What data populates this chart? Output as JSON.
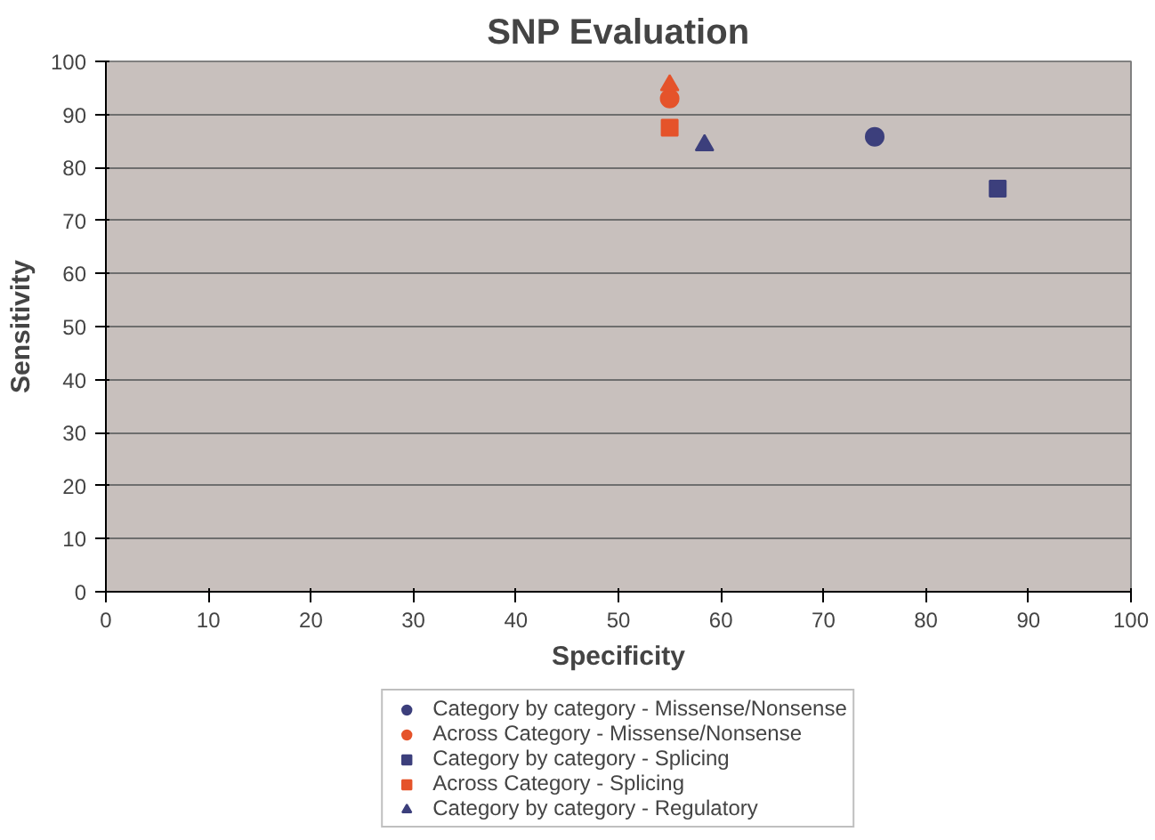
{
  "chart_data": {
    "type": "scatter",
    "title": "SNP Evaluation",
    "xlabel": "Specificity",
    "ylabel": "Sensitivity",
    "xlim": [
      0,
      100
    ],
    "ylim": [
      0,
      100
    ],
    "xticks": [
      0,
      10,
      20,
      30,
      40,
      50,
      60,
      70,
      80,
      90,
      100
    ],
    "yticks": [
      0,
      10,
      20,
      30,
      40,
      50,
      60,
      70,
      80,
      90,
      100
    ],
    "grid": "y",
    "legend": "bottom",
    "series": [
      {
        "name": "Category by category - Missense/Nonsense",
        "color": "#3c3f7c",
        "marker": "circle",
        "x": [
          75
        ],
        "values": [
          85.8
        ]
      },
      {
        "name": "Across Category - Missense/Nonsense",
        "color": "#e5532a",
        "marker": "circle",
        "x": [
          55
        ],
        "values": [
          93
        ]
      },
      {
        "name": "Category by category - Splicing",
        "color": "#3c3f7c",
        "marker": "square",
        "x": [
          87
        ],
        "values": [
          76
        ]
      },
      {
        "name": "Across Category - Splicing",
        "color": "#e5532a",
        "marker": "square",
        "x": [
          55
        ],
        "values": [
          87.5
        ]
      },
      {
        "name": "Category by category - Regulatory",
        "color": "#3c3f7c",
        "marker": "triangle",
        "x": [
          58.4
        ],
        "values": [
          84.2
        ]
      },
      {
        "color": "#e5532a",
        "marker": "triangle",
        "x": [
          55
        ],
        "values": [
          95.5
        ]
      }
    ]
  }
}
